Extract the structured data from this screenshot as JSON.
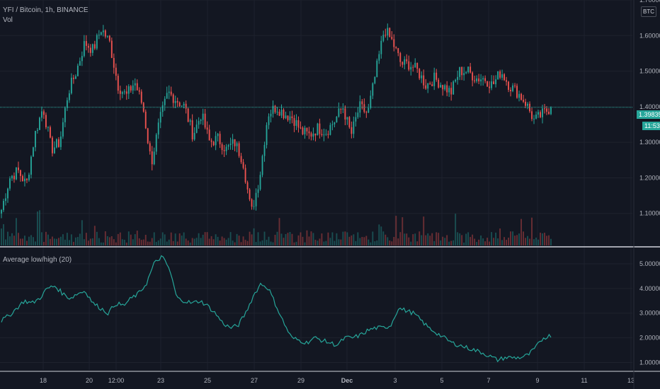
{
  "header": {
    "symbol_title": "YFI / Bitcoin, 1h, BINANCE",
    "volume_label": "Vol",
    "indicator_title": "Average low/high (20)",
    "currency": "BTC"
  },
  "price_tag": {
    "value": "1.39835",
    "countdown": "11:53",
    "color": "#26a69a"
  },
  "colors": {
    "up": "#26a69a",
    "down": "#ef5350",
    "indicator": "#26a69a",
    "background": "#131722",
    "grid": "#1e222d"
  },
  "chart_data": [
    {
      "type": "candlestick",
      "title": "YFI / Bitcoin, 1h, BINANCE",
      "y_ticks": [
        "1.10000",
        "1.20000",
        "1.30000",
        "1.40000",
        "1.50000",
        "1.60000",
        "1.70000"
      ],
      "ylim": [
        1.01,
        1.7
      ],
      "x_ticks": [
        "18",
        "20",
        "12:00",
        "23",
        "25",
        "27",
        "29",
        "Dec",
        "3",
        "5",
        "7",
        "9",
        "11",
        "13"
      ],
      "last_price": 1.39835,
      "close_anchors": [
        1.11,
        1.2,
        1.22,
        1.18,
        1.32,
        1.4,
        1.28,
        1.3,
        1.44,
        1.5,
        1.58,
        1.56,
        1.62,
        1.58,
        1.46,
        1.43,
        1.47,
        1.4,
        1.24,
        1.36,
        1.44,
        1.42,
        1.4,
        1.32,
        1.38,
        1.3,
        1.31,
        1.28,
        1.3,
        1.25,
        1.1,
        1.2,
        1.38,
        1.4,
        1.38,
        1.37,
        1.33,
        1.32,
        1.34,
        1.33,
        1.36,
        1.4,
        1.32,
        1.4,
        1.38,
        1.5,
        1.62,
        1.58,
        1.52,
        1.52,
        1.5,
        1.46,
        1.48,
        1.46,
        1.44,
        1.5,
        1.5,
        1.48,
        1.48,
        1.46,
        1.5,
        1.46,
        1.44,
        1.41,
        1.36,
        1.38,
        1.39835
      ],
      "volume_ratio": 0.12
    },
    {
      "type": "line",
      "title": "Average low/high (20)",
      "y_ticks": [
        "1.00000",
        "2.00000",
        "3.00000",
        "4.00000",
        "5.00000"
      ],
      "ylim": [
        0.7,
        5.6
      ],
      "values": [
        2.7,
        2.9,
        3.2,
        3.5,
        3.4,
        3.6,
        4.0,
        4.1,
        3.8,
        3.6,
        3.8,
        3.9,
        3.4,
        3.2,
        3.0,
        3.4,
        3.3,
        3.6,
        3.8,
        4.2,
        5.0,
        5.3,
        4.8,
        3.6,
        3.5,
        3.4,
        3.5,
        3.3,
        3.0,
        2.6,
        2.4,
        2.5,
        3.0,
        3.7,
        4.2,
        4.0,
        3.3,
        2.6,
        2.0,
        1.9,
        1.8,
        2.0,
        1.9,
        1.8,
        1.7,
        2.0,
        2.0,
        2.1,
        2.3,
        2.4,
        2.4,
        2.5,
        3.2,
        3.1,
        3.0,
        2.7,
        2.4,
        2.2,
        2.0,
        1.8,
        1.7,
        1.6,
        1.5,
        1.4,
        1.25,
        1.1,
        1.2,
        1.2,
        1.2,
        1.3,
        1.6,
        2.0,
        2.1
      ]
    }
  ]
}
